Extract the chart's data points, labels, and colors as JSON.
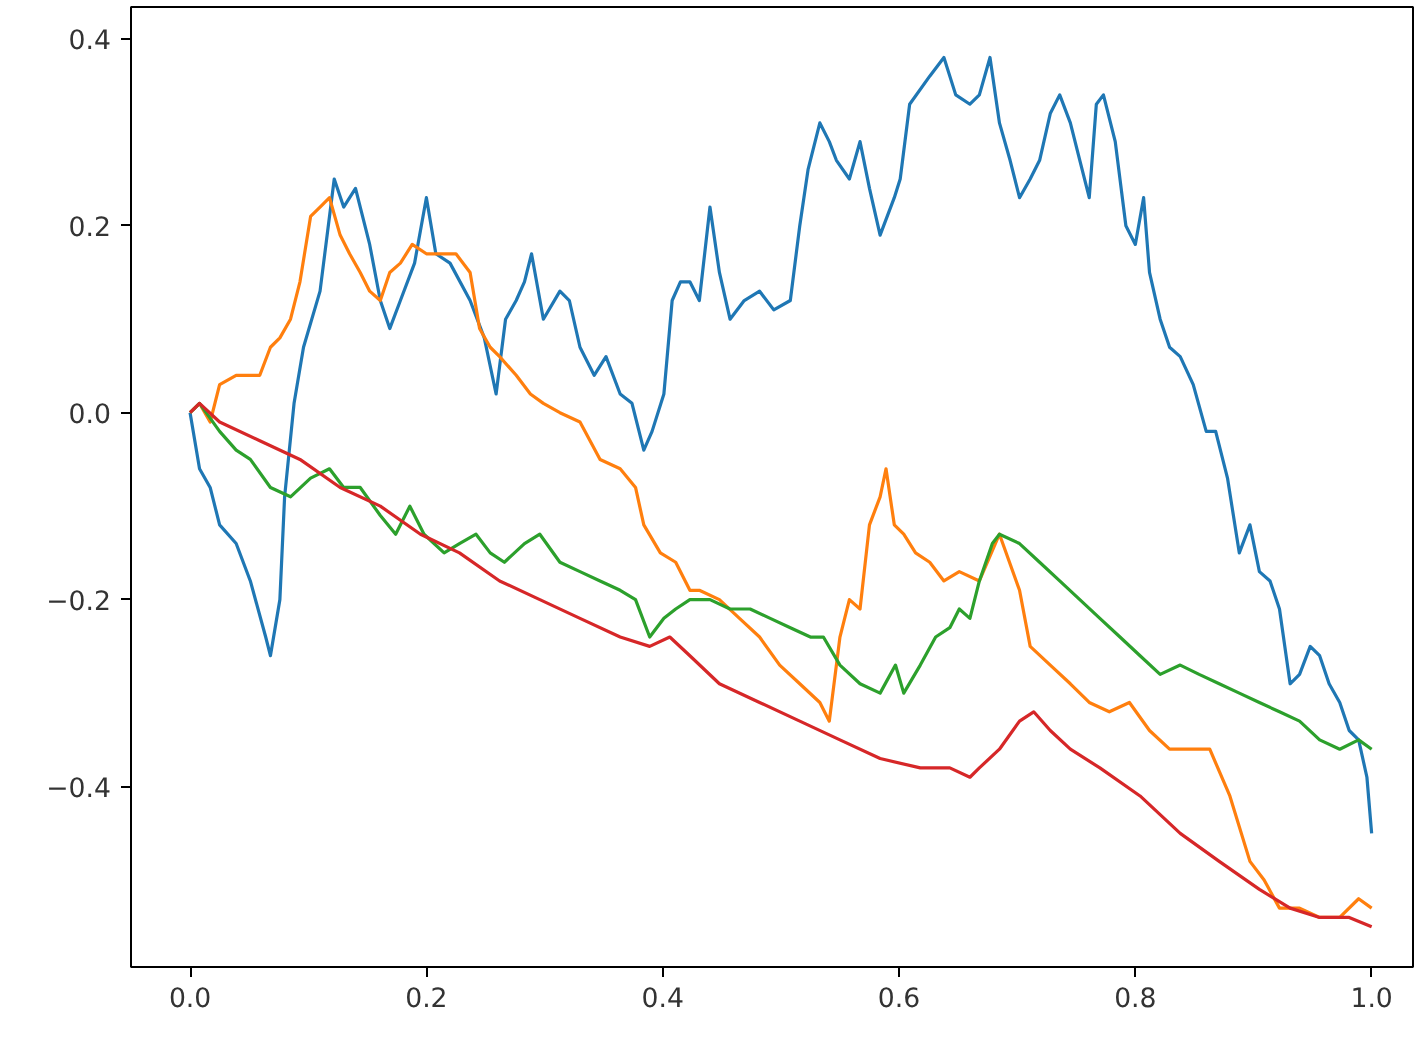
{
  "chart_data": {
    "type": "line",
    "xlim": [
      -0.05,
      1.035
    ],
    "ylim": [
      -0.593,
      0.434
    ],
    "xticks": [
      {
        "value": 0,
        "label": "0.0"
      },
      {
        "value": 0.2,
        "label": "0.2"
      },
      {
        "value": 0.4,
        "label": "0.4"
      },
      {
        "value": 0.6,
        "label": "0.6"
      },
      {
        "value": 0.8,
        "label": "0.8"
      },
      {
        "value": 1.0,
        "label": "1.0"
      }
    ],
    "yticks": [
      {
        "value": -0.4,
        "label": "−0.4"
      },
      {
        "value": -0.2,
        "label": "−0.2"
      },
      {
        "value": 0,
        "label": "0.0"
      },
      {
        "value": 0.2,
        "label": "0.2"
      },
      {
        "value": 0.4,
        "label": "0.4"
      }
    ],
    "grid": false,
    "line_style": "solid",
    "series": [
      {
        "color": "#1f77b4",
        "x": [
          0,
          0.008,
          0.017,
          0.025,
          0.039,
          0.051,
          0.064,
          0.068,
          0.076,
          0.08,
          0.088,
          0.096,
          0.11,
          0.122,
          0.13,
          0.14,
          0.152,
          0.161,
          0.169,
          0.178,
          0.19,
          0.2,
          0.208,
          0.22,
          0.237,
          0.249,
          0.259,
          0.267,
          0.276,
          0.283,
          0.289,
          0.299,
          0.313,
          0.321,
          0.33,
          0.342,
          0.352,
          0.364,
          0.374,
          0.384,
          0.391,
          0.401,
          0.408,
          0.415,
          0.423,
          0.431,
          0.44,
          0.448,
          0.457,
          0.469,
          0.482,
          0.494,
          0.508,
          0.516,
          0.523,
          0.533,
          0.541,
          0.547,
          0.558,
          0.567,
          0.575,
          0.584,
          0.596,
          0.601,
          0.609,
          0.626,
          0.638,
          0.648,
          0.66,
          0.668,
          0.677,
          0.685,
          0.694,
          0.702,
          0.711,
          0.719,
          0.728,
          0.736,
          0.745,
          0.753,
          0.761,
          0.767,
          0.773,
          0.783,
          0.792,
          0.8,
          0.807,
          0.812,
          0.821,
          0.829,
          0.838,
          0.849,
          0.86,
          0.868,
          0.878,
          0.888,
          0.897,
          0.905,
          0.914,
          0.922,
          0.931,
          0.939,
          0.948,
          0.956,
          0.964,
          0.973,
          0.981,
          0.989,
          0.996,
          1.0
        ],
        "values": [
          0,
          -0.06,
          -0.08,
          -0.12,
          -0.14,
          -0.18,
          -0.24,
          -0.26,
          -0.2,
          -0.09,
          0.01,
          0.07,
          0.13,
          0.25,
          0.22,
          0.24,
          0.18,
          0.12,
          0.09,
          0.12,
          0.16,
          0.23,
          0.17,
          0.16,
          0.12,
          0.08,
          0.02,
          0.1,
          0.12,
          0.14,
          0.17,
          0.1,
          0.13,
          0.12,
          0.07,
          0.04,
          0.06,
          0.02,
          0.01,
          -0.04,
          -0.02,
          0.02,
          0.12,
          0.14,
          0.14,
          0.12,
          0.22,
          0.15,
          0.1,
          0.12,
          0.13,
          0.11,
          0.12,
          0.2,
          0.26,
          0.31,
          0.29,
          0.27,
          0.25,
          0.29,
          0.24,
          0.19,
          0.23,
          0.25,
          0.33,
          0.36,
          0.38,
          0.34,
          0.33,
          0.34,
          0.38,
          0.31,
          0.27,
          0.23,
          0.25,
          0.27,
          0.32,
          0.34,
          0.31,
          0.27,
          0.23,
          0.33,
          0.34,
          0.29,
          0.2,
          0.18,
          0.23,
          0.15,
          0.1,
          0.07,
          0.06,
          0.03,
          -0.02,
          -0.02,
          -0.07,
          -0.15,
          -0.12,
          -0.17,
          -0.18,
          -0.21,
          -0.29,
          -0.28,
          -0.25,
          -0.26,
          -0.29,
          -0.31,
          -0.34,
          -0.35,
          -0.39,
          -0.45
        ]
      },
      {
        "color": "#ff7f0e",
        "x": [
          0,
          0.008,
          0.017,
          0.025,
          0.039,
          0.051,
          0.059,
          0.068,
          0.076,
          0.085,
          0.093,
          0.102,
          0.11,
          0.118,
          0.127,
          0.135,
          0.144,
          0.152,
          0.161,
          0.169,
          0.178,
          0.188,
          0.2,
          0.212,
          0.225,
          0.237,
          0.245,
          0.254,
          0.262,
          0.276,
          0.288,
          0.299,
          0.313,
          0.33,
          0.347,
          0.364,
          0.377,
          0.384,
          0.398,
          0.411,
          0.423,
          0.431,
          0.448,
          0.465,
          0.482,
          0.499,
          0.516,
          0.533,
          0.541,
          0.55,
          0.558,
          0.567,
          0.575,
          0.584,
          0.589,
          0.596,
          0.604,
          0.614,
          0.626,
          0.638,
          0.651,
          0.668,
          0.685,
          0.702,
          0.711,
          0.728,
          0.745,
          0.761,
          0.778,
          0.795,
          0.812,
          0.829,
          0.846,
          0.863,
          0.88,
          0.897,
          0.909,
          0.922,
          0.939,
          0.956,
          0.973,
          0.989,
          1.0
        ],
        "values": [
          0,
          0.01,
          -0.01,
          0.03,
          0.04,
          0.04,
          0.04,
          0.07,
          0.08,
          0.1,
          0.14,
          0.21,
          0.22,
          0.23,
          0.19,
          0.17,
          0.15,
          0.13,
          0.12,
          0.15,
          0.16,
          0.18,
          0.17,
          0.17,
          0.17,
          0.15,
          0.09,
          0.07,
          0.06,
          0.04,
          0.02,
          0.01,
          0,
          -0.01,
          -0.05,
          -0.06,
          -0.08,
          -0.12,
          -0.15,
          -0.16,
          -0.19,
          -0.19,
          -0.2,
          -0.22,
          -0.24,
          -0.27,
          -0.29,
          -0.31,
          -0.33,
          -0.24,
          -0.2,
          -0.21,
          -0.12,
          -0.09,
          -0.06,
          -0.12,
          -0.13,
          -0.15,
          -0.16,
          -0.18,
          -0.17,
          -0.18,
          -0.13,
          -0.19,
          -0.25,
          -0.27,
          -0.29,
          -0.31,
          -0.32,
          -0.31,
          -0.34,
          -0.36,
          -0.36,
          -0.36,
          -0.41,
          -0.48,
          -0.5,
          -0.53,
          -0.53,
          -0.54,
          -0.54,
          -0.52,
          -0.53
        ]
      },
      {
        "color": "#2ca02c",
        "x": [
          0,
          0.008,
          0.025,
          0.039,
          0.051,
          0.068,
          0.085,
          0.102,
          0.118,
          0.13,
          0.144,
          0.161,
          0.174,
          0.186,
          0.198,
          0.215,
          0.228,
          0.242,
          0.254,
          0.266,
          0.283,
          0.296,
          0.313,
          0.33,
          0.347,
          0.364,
          0.377,
          0.389,
          0.401,
          0.411,
          0.423,
          0.44,
          0.457,
          0.474,
          0.491,
          0.508,
          0.525,
          0.536,
          0.55,
          0.567,
          0.584,
          0.597,
          0.604,
          0.618,
          0.631,
          0.643,
          0.651,
          0.66,
          0.668,
          0.679,
          0.685,
          0.702,
          0.719,
          0.736,
          0.753,
          0.77,
          0.787,
          0.804,
          0.821,
          0.838,
          0.854,
          0.871,
          0.888,
          0.905,
          0.922,
          0.939,
          0.956,
          0.973,
          0.989,
          1.0
        ],
        "values": [
          0,
          0.01,
          -0.02,
          -0.04,
          -0.05,
          -0.08,
          -0.09,
          -0.07,
          -0.06,
          -0.08,
          -0.08,
          -0.11,
          -0.13,
          -0.1,
          -0.13,
          -0.15,
          -0.14,
          -0.13,
          -0.15,
          -0.16,
          -0.14,
          -0.13,
          -0.16,
          -0.17,
          -0.18,
          -0.19,
          -0.2,
          -0.24,
          -0.22,
          -0.21,
          -0.2,
          -0.2,
          -0.21,
          -0.21,
          -0.22,
          -0.23,
          -0.24,
          -0.24,
          -0.27,
          -0.29,
          -0.3,
          -0.27,
          -0.3,
          -0.27,
          -0.24,
          -0.23,
          -0.21,
          -0.22,
          -0.18,
          -0.14,
          -0.13,
          -0.14,
          -0.16,
          -0.18,
          -0.2,
          -0.22,
          -0.24,
          -0.26,
          -0.28,
          -0.27,
          -0.28,
          -0.29,
          -0.3,
          -0.31,
          -0.32,
          -0.33,
          -0.35,
          -0.36,
          -0.35,
          -0.36
        ]
      },
      {
        "color": "#d62728",
        "x": [
          0,
          0.008,
          0.025,
          0.059,
          0.093,
          0.127,
          0.161,
          0.195,
          0.228,
          0.262,
          0.296,
          0.33,
          0.364,
          0.389,
          0.406,
          0.423,
          0.448,
          0.482,
          0.516,
          0.55,
          0.584,
          0.618,
          0.643,
          0.66,
          0.668,
          0.685,
          0.702,
          0.714,
          0.728,
          0.745,
          0.77,
          0.804,
          0.838,
          0.871,
          0.905,
          0.931,
          0.956,
          0.981,
          1.0
        ],
        "values": [
          0,
          0.01,
          -0.01,
          -0.03,
          -0.05,
          -0.08,
          -0.1,
          -0.13,
          -0.15,
          -0.18,
          -0.2,
          -0.22,
          -0.24,
          -0.25,
          -0.24,
          -0.26,
          -0.29,
          -0.31,
          -0.33,
          -0.35,
          -0.37,
          -0.38,
          -0.38,
          -0.39,
          -0.38,
          -0.36,
          -0.33,
          -0.32,
          -0.34,
          -0.36,
          -0.38,
          -0.41,
          -0.45,
          -0.48,
          -0.51,
          -0.53,
          -0.54,
          -0.54,
          -0.55
        ]
      }
    ]
  }
}
